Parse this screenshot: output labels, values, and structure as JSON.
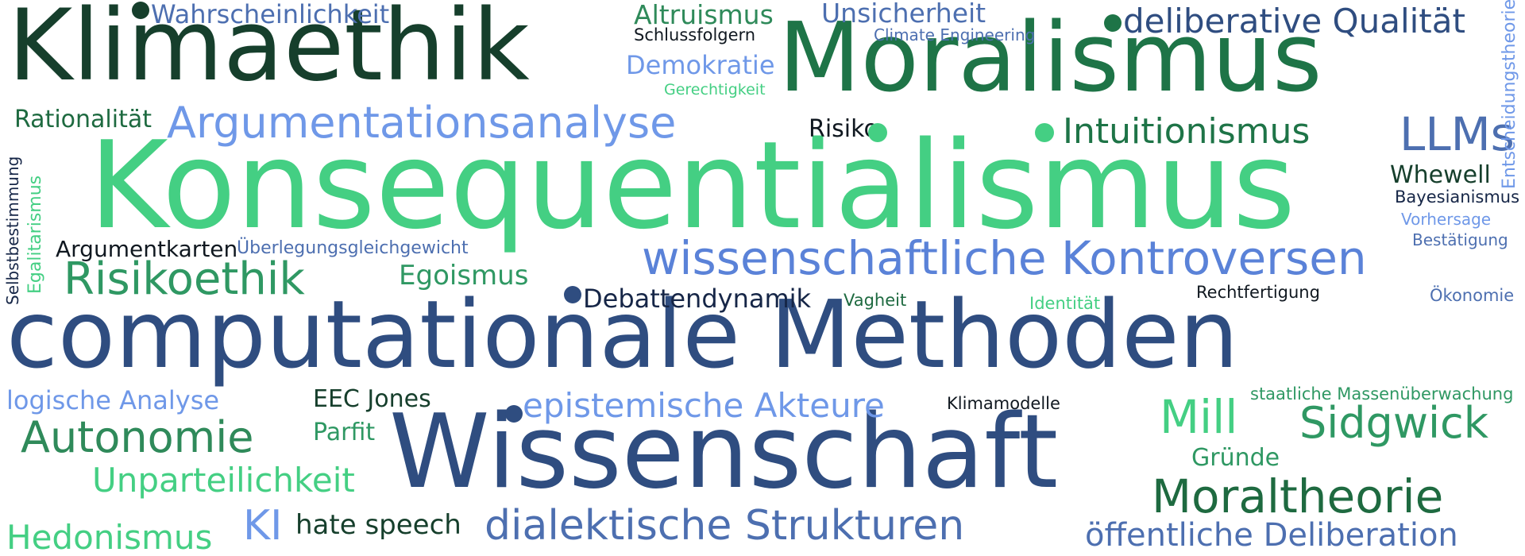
{
  "colors": {
    "dark_green": "#163f2c",
    "green": "#1e7447",
    "mid_green": "#2f9863",
    "light_green": "#44cf83",
    "light_blue": "#6f98e8",
    "blue": "#4d6fb0",
    "navy": "#2f4d80",
    "dark_navy": "#162647",
    "black": "#101820"
  },
  "words": {
    "klimaethik": "Klimaethik",
    "moralismus": "Moralismus",
    "konsequentialismus": "Konsequentialismus",
    "computationale_methoden": "computationale Methoden",
    "wissenschaft": "Wissenschaft",
    "argumentationsanalyse": "Argumentationsanalyse",
    "wissenschaftliche_kontroversen": "wissenschaftliche Kontroversen",
    "dialektische_strukturen": "dialektische Strukturen",
    "deliberative_qualitaet": "deliberative Qualität",
    "risikoethik": "Risikoethik",
    "moraltheorie": "Moraltheorie",
    "llms": "LLMs",
    "intuitionismus": "Intuitionismus",
    "epistemische_akteure": "epistemische Akteure",
    "sidgwick": "Sidgwick",
    "autonomie": "Autonomie",
    "mill": "Mill",
    "oeffentliche_deliberation": "öffentliche Deliberation",
    "unparteilichkeit": "Unparteilichkeit",
    "hedonismus": "Hedonismus",
    "ki": "KI",
    "wahrscheinlichkeit": "Wahrscheinlichkeit",
    "altruismus": "Altruismus",
    "unsicherheit": "Unsicherheit",
    "demokratie": "Demokratie",
    "rationalitaet": "Rationalität",
    "logische_analyse": "logische Analyse",
    "hate_speech": "hate speech",
    "egoismus": "Egoismus",
    "debattendynamik": "Debattendynamik",
    "eec_jones": "EEC Jones",
    "parfit": "Parfit",
    "whewell": "Whewell",
    "risiko": "Risiko",
    "argumentkarten": "Argumentkarten",
    "gruende": "Gründe",
    "schlussfolgern": "Schlussfolgern",
    "climate_engineering": "Climate Engineering",
    "gerechtigkeit": "Gerechtigkeit",
    "bayesianismus": "Bayesianismus",
    "ueberlegungsgleichgewicht": "Überlegungsgleichgewicht",
    "vorhersage": "Vorhersage",
    "bestaetigung": "Bestätigung",
    "rechtfertigung": "Rechtfertigung",
    "oekonomie": "Ökonomie",
    "vagheit": "Vagheit",
    "identitaet": "Identität",
    "klimamodelle": "Klimamodelle",
    "staatliche_massenueberwachung": "staatliche Massenüberwachung",
    "entscheidungstheorie": "Entscheidungstheorie",
    "egalitarismus": "Egalitarismus",
    "selbstbestimmung": "Selbstbestimmung"
  }
}
